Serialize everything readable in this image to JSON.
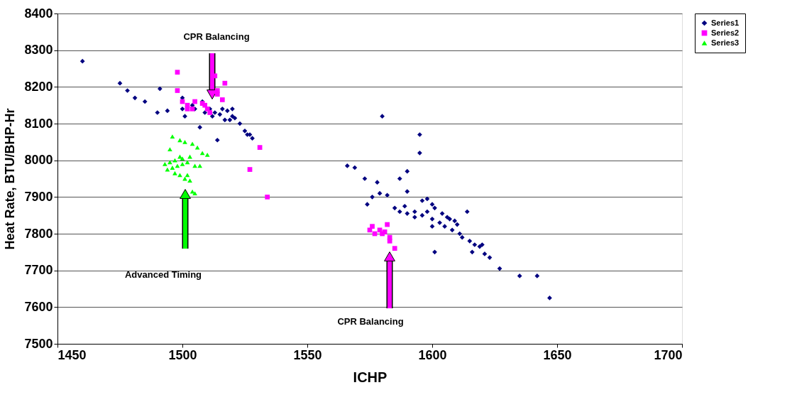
{
  "chart_data": {
    "type": "scatter",
    "xlabel": "ICHP",
    "ylabel": "Heat Rate, BTU/BHP-Hr",
    "xlim": [
      1450,
      1700
    ],
    "xticks": [
      {
        "value": 1450,
        "label": "1450"
      },
      {
        "value": 1500,
        "label": "1500"
      },
      {
        "value": 1550,
        "label": "1550"
      },
      {
        "value": 1600,
        "label": "1600"
      },
      {
        "value": 1650,
        "label": "1650"
      },
      {
        "value": 1700,
        "label": "1700"
      }
    ],
    "ylim": [
      7500,
      8400
    ],
    "yticks": [
      {
        "value": 7500,
        "label": "7500"
      },
      {
        "value": 7600,
        "label": "7600"
      },
      {
        "value": 7700,
        "label": "7700"
      },
      {
        "value": 7800,
        "label": "7800"
      },
      {
        "value": 7900,
        "label": "7900"
      },
      {
        "value": 8000,
        "label": "8000"
      },
      {
        "value": 8100,
        "label": "8100"
      },
      {
        "value": 8200,
        "label": "8200"
      },
      {
        "value": 8300,
        "label": "8300"
      },
      {
        "value": 8400,
        "label": "8400"
      }
    ],
    "grid": "y",
    "legend": "right",
    "annotations": [
      "CPR Balancing",
      "Advanced Timing",
      "CPR Balancing"
    ],
    "series": [
      {
        "name": "Series1",
        "color": "#000080",
        "marker": "diamond",
        "x": [
          1460,
          1475,
          1478,
          1481,
          1485,
          1491,
          1490,
          1494,
          1500,
          1500,
          1501,
          1504,
          1505,
          1507,
          1508,
          1509,
          1511,
          1512,
          1513,
          1514,
          1515,
          1516,
          1517,
          1518,
          1519,
          1520,
          1520,
          1521,
          1523,
          1525,
          1526,
          1527,
          1528,
          1580,
          1595,
          1595,
          1566,
          1569,
          1573,
          1578,
          1587,
          1590,
          1574,
          1576,
          1579,
          1582,
          1585,
          1589,
          1590,
          1593,
          1587,
          1590,
          1593,
          1596,
          1598,
          1600,
          1601,
          1598,
          1596,
          1600,
          1603,
          1604,
          1606,
          1607,
          1609,
          1610,
          1608,
          1611,
          1605,
          1600,
          1601,
          1612,
          1614,
          1615,
          1617,
          1619,
          1620,
          1621,
          1616,
          1623,
          1627,
          1635,
          1642,
          1647
        ],
        "values": [
          8270,
          8210,
          8190,
          8170,
          8160,
          8195,
          8130,
          8135,
          8170,
          8140,
          8120,
          8150,
          8140,
          8090,
          8160,
          8130,
          8140,
          8120,
          8130,
          8055,
          8125,
          8140,
          8110,
          8135,
          8110,
          8140,
          8120,
          8115,
          8100,
          8080,
          8070,
          8070,
          8060,
          8120,
          8070,
          8020,
          7985,
          7980,
          7950,
          7940,
          7950,
          7970,
          7880,
          7900,
          7910,
          7905,
          7870,
          7875,
          7915,
          7860,
          7860,
          7855,
          7845,
          7890,
          7895,
          7880,
          7870,
          7860,
          7850,
          7840,
          7830,
          7855,
          7845,
          7840,
          7835,
          7825,
          7810,
          7800,
          7820,
          7820,
          7750,
          7790,
          7860,
          7780,
          7770,
          7765,
          7770,
          7745,
          7750,
          7735,
          7705,
          7685,
          7685,
          7625
        ]
      },
      {
        "name": "Series2",
        "color": "#ff00ff",
        "marker": "square",
        "x": [
          1498,
          1498,
          1500,
          1502,
          1502,
          1504,
          1505,
          1508,
          1509,
          1510,
          1511,
          1513,
          1514,
          1517,
          1516,
          1514,
          1531,
          1527,
          1534,
          1575,
          1576,
          1577,
          1579,
          1580,
          1581,
          1582,
          1583,
          1583,
          1585
        ],
        "values": [
          8240,
          8190,
          8160,
          8150,
          8140,
          8140,
          8160,
          8155,
          8150,
          8140,
          8130,
          8230,
          8190,
          8210,
          8165,
          8180,
          8035,
          7975,
          7900,
          7810,
          7820,
          7800,
          7810,
          7800,
          7805,
          7825,
          7790,
          7780,
          7760
        ]
      },
      {
        "name": "Series3",
        "color": "#00ff00",
        "marker": "triangle",
        "x": [
          1496,
          1495,
          1499,
          1501,
          1504,
          1506,
          1508,
          1510,
          1497,
          1499,
          1500,
          1503,
          1502,
          1505,
          1507,
          1493,
          1494,
          1496,
          1498,
          1497,
          1499,
          1501,
          1503,
          1504,
          1505,
          1502,
          1495,
          1500
        ],
        "values": [
          8065,
          8030,
          8055,
          8050,
          8045,
          8035,
          8020,
          8015,
          8000,
          8010,
          8005,
          8010,
          7995,
          7985,
          7985,
          7990,
          7975,
          7980,
          7985,
          7965,
          7960,
          7950,
          7945,
          7915,
          7910,
          7960,
          7995,
          7990
        ]
      }
    ]
  }
}
